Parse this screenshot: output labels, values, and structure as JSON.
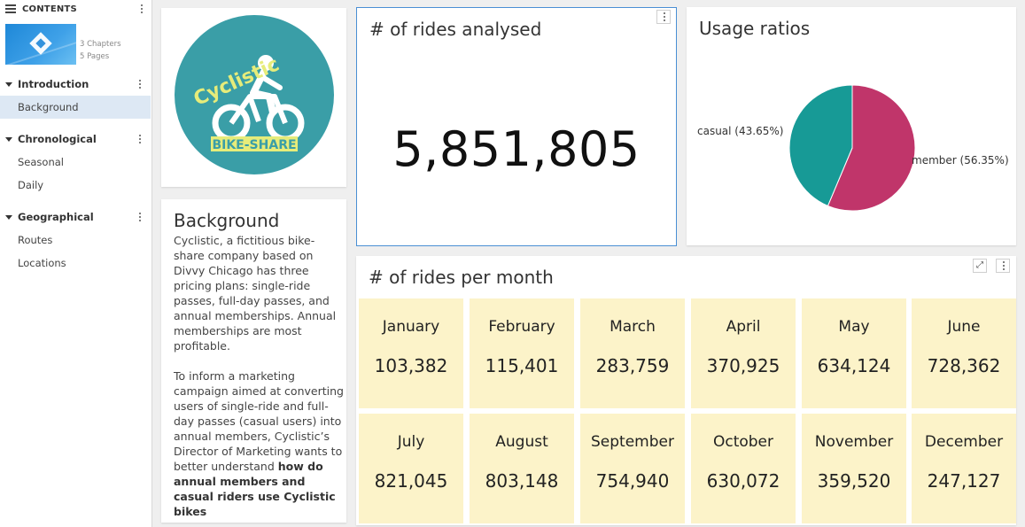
{
  "sidebar": {
    "header": "CONTENTS",
    "meta_chapters": "3 Chapters",
    "meta_pages": "5 Pages",
    "chapters": [
      {
        "label": "Introduction",
        "pages": [
          "Background"
        ]
      },
      {
        "label": "Chronological",
        "pages": [
          "Seasonal",
          "Daily"
        ]
      },
      {
        "label": "Geographical",
        "pages": [
          "Routes",
          "Locations"
        ]
      }
    ],
    "active_page": "Background"
  },
  "logo": {
    "top_text": "Cyclistic",
    "bottom_text": "BIKE-SHARE"
  },
  "background": {
    "title": "Background",
    "paragraph1": "Cyclistic, a fictitious bike-share company based on Divvy Chicago has three pricing plans: single-ride passes, full-day passes, and annual memberships. Annual memberships are most profitable.",
    "paragraph2_plain": "To inform a marketing campaign aimed at converting users of single-ride and full-day passes (casual users) into annual members, Cyclistic’s Director of Marketing wants to better understand ",
    "paragraph2_bold": "how do annual members and casual riders use Cyclistic bikes"
  },
  "rides_analysed": {
    "title": "# of rides analysed",
    "value": "5,851,805"
  },
  "usage": {
    "title": "Usage ratios",
    "chart_data": {
      "type": "pie",
      "labels": [
        "casual (43.65%)",
        "member (56.35%)"
      ],
      "values": [
        43.65,
        56.35
      ],
      "colors": [
        "#179a96",
        "#c0356a"
      ]
    }
  },
  "monthly": {
    "title": "# of rides per month",
    "months": [
      {
        "name": "January",
        "value": "103,382"
      },
      {
        "name": "February",
        "value": "115,401"
      },
      {
        "name": "March",
        "value": "283,759"
      },
      {
        "name": "April",
        "value": "370,925"
      },
      {
        "name": "May",
        "value": "634,124"
      },
      {
        "name": "June",
        "value": "728,362"
      },
      {
        "name": "July",
        "value": "821,045"
      },
      {
        "name": "August",
        "value": "803,148"
      },
      {
        "name": "September",
        "value": "754,940"
      },
      {
        "name": "October",
        "value": "630,072"
      },
      {
        "name": "November",
        "value": "359,520"
      },
      {
        "name": "December",
        "value": "247,127"
      }
    ]
  }
}
